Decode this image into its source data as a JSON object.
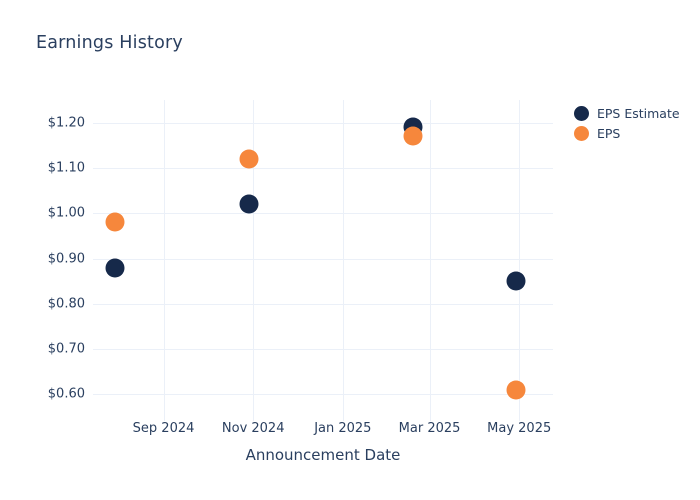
{
  "title": "Earnings History",
  "colors": {
    "eps_estimate": "#16294a",
    "eps": "#f6873c",
    "grid": "#ebf0f8",
    "text": "#2a3f5f",
    "background": "#ffffff"
  },
  "chart_data": {
    "type": "scatter",
    "title": "Earnings History",
    "xlabel": "Announcement Date",
    "ylabel": "",
    "x_range": [
      "2024-07-15",
      "2025-05-24"
    ],
    "y_range": [
      0.55,
      1.25
    ],
    "grid": true,
    "legend_position": "right",
    "x_ticks": [
      {
        "label": "Sep 2024",
        "date": "2024-09-01"
      },
      {
        "label": "Nov 2024",
        "date": "2024-11-01"
      },
      {
        "label": "Jan 2025",
        "date": "2025-01-01"
      },
      {
        "label": "Mar 2025",
        "date": "2025-03-01"
      },
      {
        "label": "May 2025",
        "date": "2025-05-01"
      }
    ],
    "y_ticks": [
      {
        "label": "$0.60",
        "value": 0.6
      },
      {
        "label": "$0.70",
        "value": 0.7
      },
      {
        "label": "$0.80",
        "value": 0.8
      },
      {
        "label": "$0.90",
        "value": 0.9
      },
      {
        "label": "$1.00",
        "value": 1.0
      },
      {
        "label": "$1.10",
        "value": 1.1
      },
      {
        "label": "$1.20",
        "value": 1.2
      }
    ],
    "series": [
      {
        "name": "EPS Estimate",
        "color": "#16294a",
        "points": [
          {
            "x": "2024-07-30",
            "y": 0.88
          },
          {
            "x": "2024-10-29",
            "y": 1.02
          },
          {
            "x": "2025-02-18",
            "y": 1.19
          },
          {
            "x": "2025-04-29",
            "y": 0.85
          }
        ]
      },
      {
        "name": "EPS",
        "color": "#f6873c",
        "points": [
          {
            "x": "2024-07-30",
            "y": 0.98
          },
          {
            "x": "2024-10-29",
            "y": 1.12
          },
          {
            "x": "2025-02-18",
            "y": 1.17
          },
          {
            "x": "2025-04-29",
            "y": 0.61
          }
        ]
      }
    ]
  }
}
